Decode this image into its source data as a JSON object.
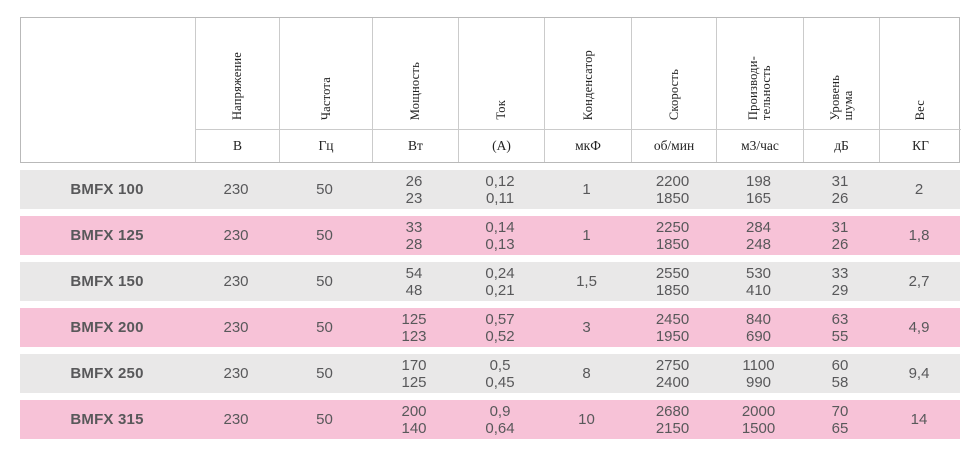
{
  "table": {
    "colors": {
      "row_gray": "#e9e8e8",
      "row_pink": "#f7c2d7",
      "border": "#cbcbcb",
      "text_data": "#58585a",
      "text_header": "#222222"
    },
    "columns": [
      {
        "label": "Напряжение",
        "unit": "В"
      },
      {
        "label": "Частота",
        "unit": "Гц"
      },
      {
        "label": "Мощность",
        "unit": "Вт"
      },
      {
        "label": "Ток",
        "unit": "(А)"
      },
      {
        "label": "Конденсатор",
        "unit": "мкФ"
      },
      {
        "label": "Скорость",
        "unit": "об/мин"
      },
      {
        "label": "Производи-\nтельность",
        "unit": "м3/час"
      },
      {
        "label": "Уровень\nшума",
        "unit": "дБ"
      },
      {
        "label": "Вес",
        "unit": "КГ"
      }
    ],
    "rows": [
      {
        "model": "BMFX 100",
        "values": [
          "230",
          "50",
          "26\n23",
          "0,12\n0,11",
          "1",
          "2200\n1850",
          "198\n165",
          "31\n26",
          "2"
        ]
      },
      {
        "model": "BMFX 125",
        "values": [
          "230",
          "50",
          "33\n28",
          "0,14\n0,13",
          "1",
          "2250\n1850",
          "284\n248",
          "31\n26",
          "1,8"
        ]
      },
      {
        "model": "BMFX 150",
        "values": [
          "230",
          "50",
          "54\n48",
          "0,24\n0,21",
          "1,5",
          "2550\n1850",
          "530\n410",
          "33\n29",
          "2,7"
        ]
      },
      {
        "model": "BMFX 200",
        "values": [
          "230",
          "50",
          "125\n123",
          "0,57\n0,52",
          "3",
          "2450\n1950",
          "840\n690",
          "63\n55",
          "4,9"
        ]
      },
      {
        "model": "BMFX 250",
        "values": [
          "230",
          "50",
          "170\n125",
          "0,5\n0,45",
          "8",
          "2750\n2400",
          "1100\n990",
          "60\n58",
          "9,4"
        ]
      },
      {
        "model": "BMFX 315",
        "values": [
          "230",
          "50",
          "200\n140",
          "0,9\n0,64",
          "10",
          "2680\n2150",
          "2000\n1500",
          "70\n65",
          "14"
        ]
      }
    ]
  }
}
